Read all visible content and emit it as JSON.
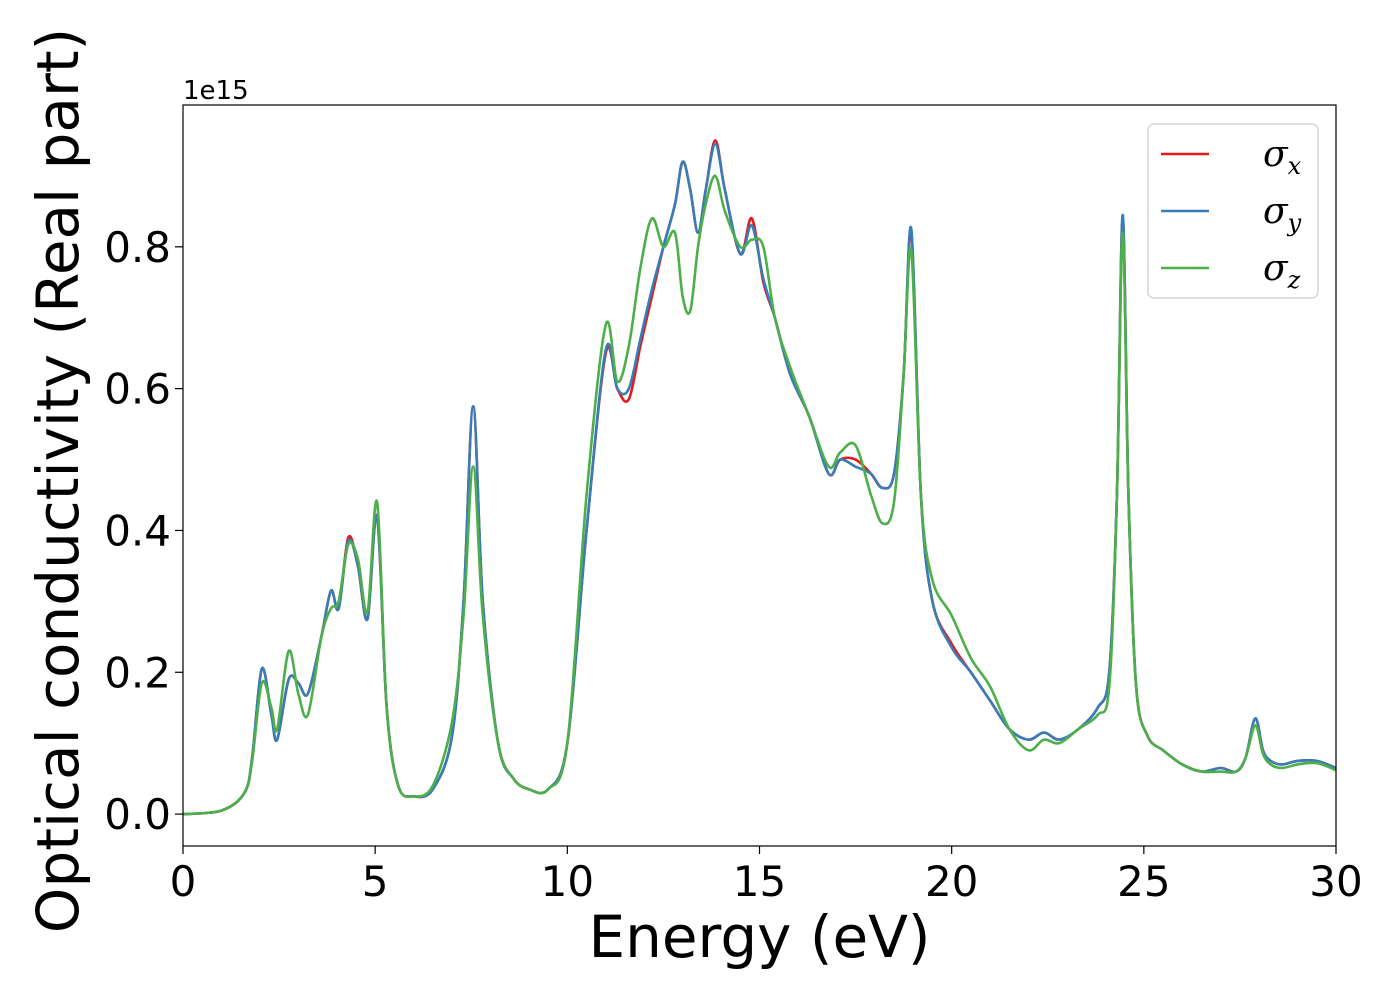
{
  "chart_data": {
    "type": "line",
    "title": "",
    "xlabel": "Energy (eV)",
    "ylabel": "Optical conductivity (Real part)",
    "y_offset_label": "1e15",
    "xlim": [
      0,
      30
    ],
    "ylim": [
      -0.045,
      1.0
    ],
    "xticks": [
      0,
      5,
      10,
      15,
      20,
      25,
      30
    ],
    "xtick_labels": [
      "0",
      "5",
      "10",
      "15",
      "20",
      "25",
      "30"
    ],
    "yticks": [
      0.0,
      0.2,
      0.4,
      0.6,
      0.8
    ],
    "ytick_labels": [
      "0.0",
      "0.2",
      "0.4",
      "0.6",
      "0.8"
    ],
    "grid": false,
    "legend_position": "top-right",
    "x": [
      0,
      1,
      1.6,
      1.8,
      2.05,
      2.3,
      2.45,
      2.75,
      3.0,
      3.25,
      3.6,
      3.85,
      4.05,
      4.3,
      4.55,
      4.8,
      5.05,
      5.3,
      5.6,
      6.0,
      6.5,
      7.0,
      7.3,
      7.55,
      7.8,
      8.2,
      8.6,
      9.0,
      9.5,
      10.0,
      10.5,
      11.0,
      11.3,
      11.6,
      11.9,
      12.2,
      12.5,
      12.8,
      13.0,
      13.2,
      13.4,
      13.6,
      13.85,
      14.1,
      14.5,
      14.8,
      15.1,
      15.4,
      15.8,
      16.3,
      16.8,
      17.1,
      17.5,
      17.9,
      18.2,
      18.5,
      18.75,
      18.95,
      19.2,
      19.5,
      20.0,
      20.5,
      21.0,
      21.5,
      22.0,
      22.4,
      22.8,
      23.3,
      23.8,
      24.1,
      24.3,
      24.45,
      24.6,
      24.8,
      25.1,
      25.5,
      26.0,
      26.5,
      27.0,
      27.4,
      27.65,
      27.9,
      28.1,
      28.3,
      28.6,
      29.0,
      29.5,
      30.0
    ],
    "series": [
      {
        "name": "σ_x",
        "legend_base": "σ",
        "legend_sub": "x",
        "color": "#e41a1c",
        "values": [
          0.0,
          0.005,
          0.03,
          0.08,
          0.205,
          0.14,
          0.105,
          0.19,
          0.185,
          0.17,
          0.25,
          0.315,
          0.29,
          0.39,
          0.35,
          0.275,
          0.42,
          0.15,
          0.04,
          0.025,
          0.035,
          0.11,
          0.3,
          0.575,
          0.3,
          0.1,
          0.05,
          0.035,
          0.035,
          0.1,
          0.4,
          0.65,
          0.6,
          0.585,
          0.66,
          0.73,
          0.8,
          0.86,
          0.92,
          0.88,
          0.82,
          0.88,
          0.95,
          0.88,
          0.79,
          0.84,
          0.75,
          0.7,
          0.62,
          0.56,
          0.48,
          0.5,
          0.5,
          0.48,
          0.46,
          0.48,
          0.62,
          0.82,
          0.45,
          0.3,
          0.24,
          0.2,
          0.16,
          0.12,
          0.105,
          0.115,
          0.105,
          0.12,
          0.15,
          0.2,
          0.45,
          0.84,
          0.45,
          0.18,
          0.11,
          0.09,
          0.07,
          0.06,
          0.065,
          0.06,
          0.08,
          0.135,
          0.09,
          0.075,
          0.07,
          0.075,
          0.075,
          0.065
        ]
      },
      {
        "name": "σ_y",
        "legend_base": "σ",
        "legend_sub": "y",
        "color": "#377eb8",
        "values": [
          0.0,
          0.005,
          0.03,
          0.08,
          0.205,
          0.14,
          0.105,
          0.19,
          0.185,
          0.17,
          0.25,
          0.315,
          0.29,
          0.385,
          0.35,
          0.275,
          0.42,
          0.15,
          0.04,
          0.025,
          0.035,
          0.11,
          0.3,
          0.575,
          0.3,
          0.1,
          0.05,
          0.035,
          0.035,
          0.1,
          0.4,
          0.655,
          0.6,
          0.6,
          0.67,
          0.74,
          0.8,
          0.86,
          0.92,
          0.88,
          0.82,
          0.88,
          0.945,
          0.88,
          0.79,
          0.83,
          0.755,
          0.7,
          0.62,
          0.56,
          0.48,
          0.5,
          0.49,
          0.48,
          0.46,
          0.48,
          0.62,
          0.825,
          0.45,
          0.3,
          0.235,
          0.2,
          0.16,
          0.12,
          0.105,
          0.115,
          0.105,
          0.12,
          0.15,
          0.2,
          0.45,
          0.845,
          0.45,
          0.18,
          0.11,
          0.09,
          0.07,
          0.06,
          0.065,
          0.06,
          0.08,
          0.135,
          0.09,
          0.075,
          0.07,
          0.075,
          0.075,
          0.065
        ]
      },
      {
        "name": "σ_z",
        "legend_base": "σ",
        "legend_sub": "z",
        "color": "#4daf4a",
        "values": [
          0.0,
          0.005,
          0.03,
          0.075,
          0.185,
          0.15,
          0.12,
          0.23,
          0.17,
          0.14,
          0.25,
          0.29,
          0.3,
          0.38,
          0.36,
          0.285,
          0.44,
          0.15,
          0.04,
          0.025,
          0.04,
          0.13,
          0.28,
          0.49,
          0.28,
          0.1,
          0.05,
          0.035,
          0.035,
          0.1,
          0.45,
          0.69,
          0.61,
          0.66,
          0.77,
          0.84,
          0.8,
          0.82,
          0.73,
          0.71,
          0.8,
          0.86,
          0.9,
          0.85,
          0.8,
          0.81,
          0.8,
          0.7,
          0.63,
          0.56,
          0.49,
          0.51,
          0.52,
          0.45,
          0.41,
          0.44,
          0.62,
          0.795,
          0.45,
          0.33,
          0.28,
          0.22,
          0.18,
          0.12,
          0.09,
          0.105,
          0.1,
          0.12,
          0.14,
          0.18,
          0.45,
          0.82,
          0.45,
          0.18,
          0.11,
          0.09,
          0.07,
          0.06,
          0.06,
          0.06,
          0.08,
          0.125,
          0.085,
          0.07,
          0.065,
          0.07,
          0.072,
          0.062
        ]
      }
    ]
  }
}
